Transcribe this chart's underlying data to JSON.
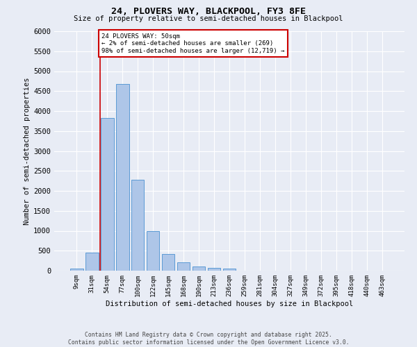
{
  "title": "24, PLOVERS WAY, BLACKPOOL, FY3 8FE",
  "subtitle": "Size of property relative to semi-detached houses in Blackpool",
  "xlabel": "Distribution of semi-detached houses by size in Blackpool",
  "ylabel": "Number of semi-detached properties",
  "footer_line1": "Contains HM Land Registry data © Crown copyright and database right 2025.",
  "footer_line2": "Contains public sector information licensed under the Open Government Licence v3.0.",
  "categories": [
    "9sqm",
    "31sqm",
    "54sqm",
    "77sqm",
    "100sqm",
    "122sqm",
    "145sqm",
    "168sqm",
    "190sqm",
    "213sqm",
    "236sqm",
    "259sqm",
    "281sqm",
    "304sqm",
    "327sqm",
    "349sqm",
    "372sqm",
    "395sqm",
    "418sqm",
    "440sqm",
    "463sqm"
  ],
  "values": [
    50,
    450,
    3820,
    4680,
    2280,
    990,
    415,
    210,
    100,
    75,
    50,
    0,
    0,
    0,
    0,
    0,
    0,
    0,
    0,
    0,
    0
  ],
  "bar_color": "#aec6e8",
  "bar_edge_color": "#5b9bd5",
  "background_color": "#e8ecf5",
  "grid_color": "#ffffff",
  "annotation_box_color": "#cc0000",
  "annotation_line1": "24 PLOVERS WAY: 50sqm",
  "annotation_line2": "← 2% of semi-detached houses are smaller (269)",
  "annotation_line3": "98% of semi-detached houses are larger (12,719) →",
  "vline_color": "#cc0000",
  "ylim": [
    0,
    6000
  ],
  "yticks": [
    0,
    500,
    1000,
    1500,
    2000,
    2500,
    3000,
    3500,
    4000,
    4500,
    5000,
    5500,
    6000
  ]
}
